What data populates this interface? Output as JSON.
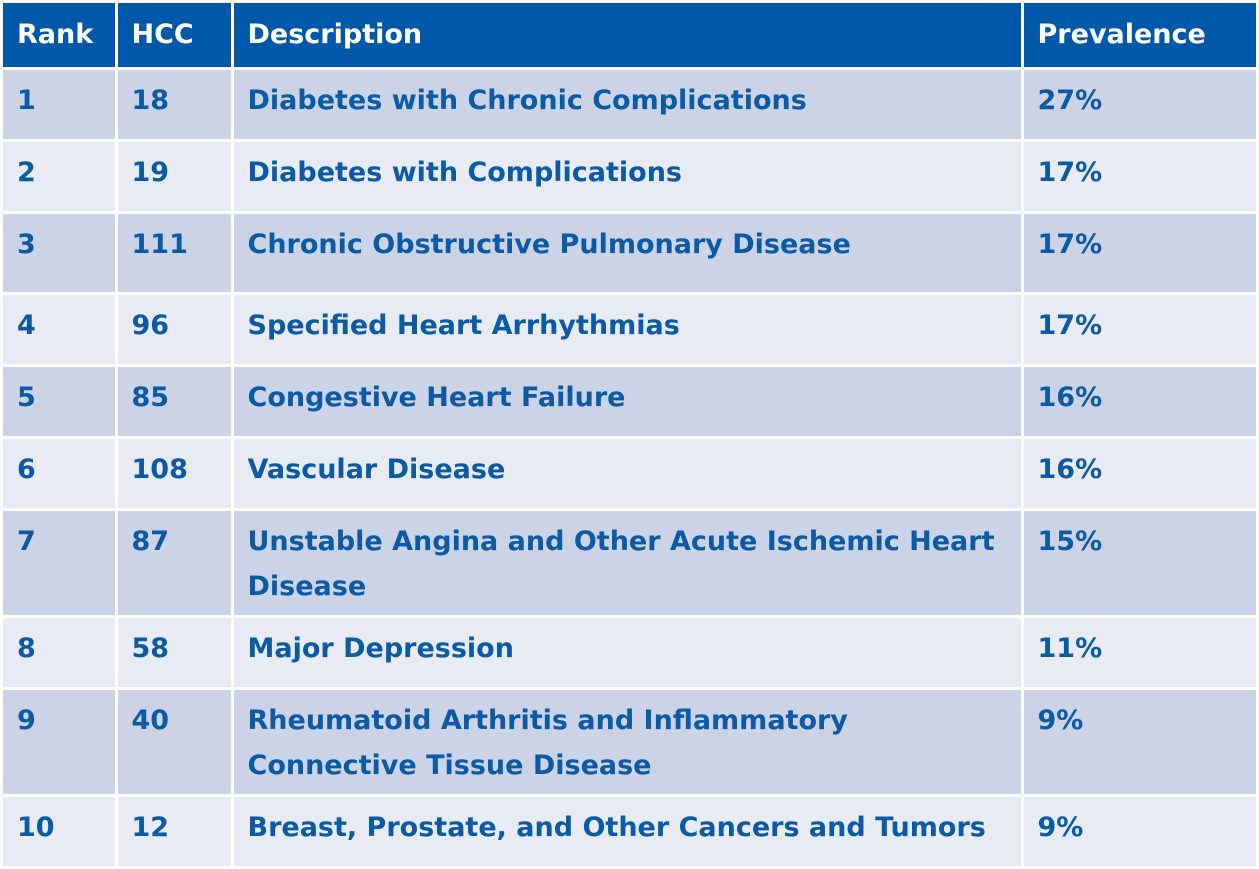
{
  "table": {
    "headers": [
      "Rank",
      "HCC",
      "Description",
      "Prevalence"
    ],
    "rows": [
      {
        "rank": "1",
        "hcc": "18",
        "description": "Diabetes with Chronic Complications",
        "prevalence": "27%"
      },
      {
        "rank": "2",
        "hcc": "19",
        "description": "Diabetes with Complications",
        "prevalence": "17%"
      },
      {
        "rank": "3",
        "hcc": "111",
        "description": "Chronic Obstructive Pulmonary Disease",
        "prevalence": "17%"
      },
      {
        "rank": "4",
        "hcc": "96",
        "description": "Specified Heart Arrhythmias",
        "prevalence": "17%"
      },
      {
        "rank": "5",
        "hcc": "85",
        "description": "Congestive Heart Failure",
        "prevalence": "16%"
      },
      {
        "rank": "6",
        "hcc": "108",
        "description": "Vascular Disease",
        "prevalence": "16%"
      },
      {
        "rank": "7",
        "hcc": "87",
        "description": "Unstable Angina and Other Acute Ischemic Heart Disease",
        "prevalence": "15%"
      },
      {
        "rank": "8",
        "hcc": "58",
        "description": "Major Depression",
        "prevalence": "11%"
      },
      {
        "rank": "9",
        "hcc": "40",
        "description": "Rheumatoid Arthritis and Inflammatory Connective Tissue Disease",
        "prevalence": "9%"
      },
      {
        "rank": "10",
        "hcc": "12",
        "description": "Breast, Prostate, and Other Cancers and Tumors",
        "prevalence": "9%"
      }
    ]
  },
  "colors": {
    "header_bg": "#0058a8",
    "header_text": "#ffffff",
    "row_dark": "#ccd3e6",
    "row_light": "#e8ebf4",
    "body_text": "#0b5aa6"
  }
}
